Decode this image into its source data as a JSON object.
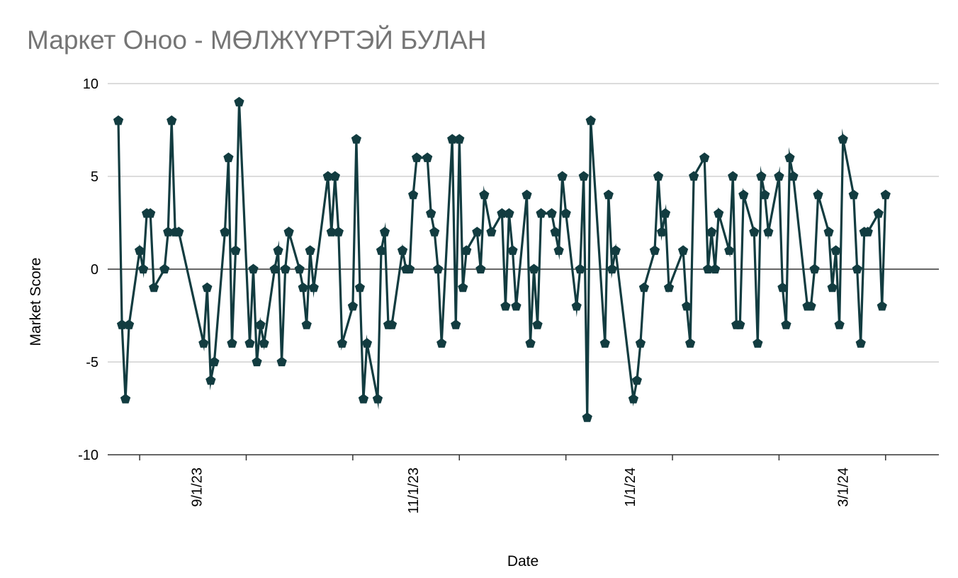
{
  "chart_data": {
    "type": "line",
    "title": "Маркет Оноо - МӨЛЖҮҮРТЭЙ БУЛАН",
    "xlabel": "Date",
    "ylabel": "Market Score",
    "ylim": [
      -10,
      10
    ],
    "yticks": [
      10,
      5,
      0,
      -5,
      -10
    ],
    "xlim": [
      "2023-08-07",
      "2024-03-28"
    ],
    "xticks": [
      "2023-08-16",
      "2023-09-15",
      "2023-10-15",
      "2023-11-14",
      "2023-12-14",
      "2024-01-13",
      "2024-02-12",
      "2024-03-13"
    ],
    "xtick_labels": [
      {
        "date": "2023-09-01",
        "label": "9/1/23"
      },
      {
        "date": "2023-11-01",
        "label": "11/1/23"
      },
      {
        "date": "2024-01-01",
        "label": "1/1/24"
      },
      {
        "date": "2024-03-01",
        "label": "3/1/24"
      }
    ],
    "grid": true,
    "line_color": "#123c40",
    "marker": "pentagon",
    "series": [
      {
        "values": [
          [
            "2023-08-10",
            8
          ],
          [
            "2023-08-11",
            -3
          ],
          [
            "2023-08-12",
            -7
          ],
          [
            "2023-08-13",
            -3
          ],
          [
            "2023-08-16",
            1
          ],
          [
            "2023-08-17",
            0
          ],
          [
            "2023-08-18",
            3
          ],
          [
            "2023-08-19",
            3
          ],
          [
            "2023-08-20",
            -1
          ],
          [
            "2023-08-23",
            0
          ],
          [
            "2023-08-24",
            2
          ],
          [
            "2023-08-25",
            8
          ],
          [
            "2023-08-26",
            2
          ],
          [
            "2023-08-27",
            2
          ],
          [
            "2023-09-03",
            -4
          ],
          [
            "2023-09-04",
            -1
          ],
          [
            "2023-09-05",
            -6
          ],
          [
            "2023-09-06",
            -5
          ],
          [
            "2023-09-09",
            2
          ],
          [
            "2023-09-10",
            6
          ],
          [
            "2023-09-11",
            -4
          ],
          [
            "2023-09-12",
            1
          ],
          [
            "2023-09-13",
            9
          ],
          [
            "2023-09-16",
            -4
          ],
          [
            "2023-09-17",
            0
          ],
          [
            "2023-09-18",
            -5
          ],
          [
            "2023-09-19",
            -3
          ],
          [
            "2023-09-20",
            -4
          ],
          [
            "2023-09-23",
            0
          ],
          [
            "2023-09-24",
            1
          ],
          [
            "2023-09-25",
            -5
          ],
          [
            "2023-09-26",
            0
          ],
          [
            "2023-09-27",
            2
          ],
          [
            "2023-09-30",
            0
          ],
          [
            "2023-10-01",
            -1
          ],
          [
            "2023-10-02",
            -3
          ],
          [
            "2023-10-03",
            1
          ],
          [
            "2023-10-04",
            -1
          ],
          [
            "2023-10-08",
            5
          ],
          [
            "2023-10-09",
            2
          ],
          [
            "2023-10-10",
            5
          ],
          [
            "2023-10-11",
            2
          ],
          [
            "2023-10-12",
            -4
          ],
          [
            "2023-10-15",
            -2
          ],
          [
            "2023-10-16",
            7
          ],
          [
            "2023-10-17",
            -1
          ],
          [
            "2023-10-18",
            -7
          ],
          [
            "2023-10-19",
            -4
          ],
          [
            "2023-10-22",
            -7
          ],
          [
            "2023-10-23",
            1
          ],
          [
            "2023-10-24",
            2
          ],
          [
            "2023-10-25",
            -3
          ],
          [
            "2023-10-26",
            -3
          ],
          [
            "2023-10-29",
            1
          ],
          [
            "2023-10-30",
            0
          ],
          [
            "2023-10-31",
            0
          ],
          [
            "2023-11-01",
            4
          ],
          [
            "2023-11-02",
            6
          ],
          [
            "2023-11-05",
            6
          ],
          [
            "2023-11-06",
            3
          ],
          [
            "2023-11-07",
            2
          ],
          [
            "2023-11-08",
            0
          ],
          [
            "2023-11-09",
            -4
          ],
          [
            "2023-11-12",
            7
          ],
          [
            "2023-11-13",
            -3
          ],
          [
            "2023-11-14",
            7
          ],
          [
            "2023-11-15",
            -1
          ],
          [
            "2023-11-16",
            1
          ],
          [
            "2023-11-19",
            2
          ],
          [
            "2023-11-20",
            0
          ],
          [
            "2023-11-21",
            4
          ],
          [
            "2023-11-23",
            2
          ],
          [
            "2023-11-26",
            3
          ],
          [
            "2023-11-27",
            -2
          ],
          [
            "2023-11-28",
            3
          ],
          [
            "2023-11-29",
            1
          ],
          [
            "2023-11-30",
            -2
          ],
          [
            "2023-12-03",
            4
          ],
          [
            "2023-12-04",
            -4
          ],
          [
            "2023-12-05",
            0
          ],
          [
            "2023-12-06",
            -3
          ],
          [
            "2023-12-07",
            3
          ],
          [
            "2023-12-10",
            3
          ],
          [
            "2023-12-11",
            2
          ],
          [
            "2023-12-12",
            1
          ],
          [
            "2023-12-13",
            5
          ],
          [
            "2023-12-14",
            3
          ],
          [
            "2023-12-17",
            -2
          ],
          [
            "2023-12-18",
            0
          ],
          [
            "2023-12-19",
            5
          ],
          [
            "2023-12-20",
            -8
          ],
          [
            "2023-12-21",
            8
          ],
          [
            "2023-12-25",
            -4
          ],
          [
            "2023-12-26",
            4
          ],
          [
            "2023-12-27",
            0
          ],
          [
            "2023-12-28",
            1
          ],
          [
            "2024-01-02",
            -7
          ],
          [
            "2024-01-03",
            -6
          ],
          [
            "2024-01-04",
            -4
          ],
          [
            "2024-01-05",
            -1
          ],
          [
            "2024-01-08",
            1
          ],
          [
            "2024-01-09",
            5
          ],
          [
            "2024-01-10",
            2
          ],
          [
            "2024-01-11",
            3
          ],
          [
            "2024-01-12",
            -1
          ],
          [
            "2024-01-16",
            1
          ],
          [
            "2024-01-17",
            -2
          ],
          [
            "2024-01-18",
            -4
          ],
          [
            "2024-01-19",
            5
          ],
          [
            "2024-01-22",
            6
          ],
          [
            "2024-01-23",
            0
          ],
          [
            "2024-01-24",
            2
          ],
          [
            "2024-01-25",
            0
          ],
          [
            "2024-01-26",
            3
          ],
          [
            "2024-01-29",
            1
          ],
          [
            "2024-01-30",
            5
          ],
          [
            "2024-01-31",
            -3
          ],
          [
            "2024-02-01",
            -3
          ],
          [
            "2024-02-02",
            4
          ],
          [
            "2024-02-05",
            2
          ],
          [
            "2024-02-06",
            -4
          ],
          [
            "2024-02-07",
            5
          ],
          [
            "2024-02-08",
            4
          ],
          [
            "2024-02-09",
            2
          ],
          [
            "2024-02-12",
            5
          ],
          [
            "2024-02-13",
            -1
          ],
          [
            "2024-02-14",
            -3
          ],
          [
            "2024-02-15",
            6
          ],
          [
            "2024-02-16",
            5
          ],
          [
            "2024-02-20",
            -2
          ],
          [
            "2024-02-21",
            -2
          ],
          [
            "2024-02-22",
            0
          ],
          [
            "2024-02-23",
            4
          ],
          [
            "2024-02-26",
            2
          ],
          [
            "2024-02-27",
            -1
          ],
          [
            "2024-02-28",
            1
          ],
          [
            "2024-02-29",
            -3
          ],
          [
            "2024-03-01",
            7
          ],
          [
            "2024-03-04",
            4
          ],
          [
            "2024-03-05",
            0
          ],
          [
            "2024-03-06",
            -4
          ],
          [
            "2024-03-07",
            2
          ],
          [
            "2024-03-08",
            2
          ],
          [
            "2024-03-11",
            3
          ],
          [
            "2024-03-12",
            -2
          ],
          [
            "2024-03-13",
            4
          ]
        ]
      }
    ]
  }
}
